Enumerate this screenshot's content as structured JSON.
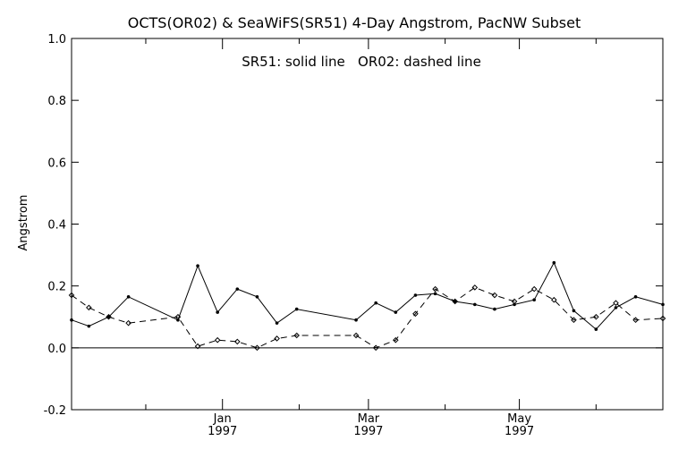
{
  "chart_data": {
    "type": "line",
    "title": "OCTS(OR02) & SeaWiFS(SR51) 4-Day Angstrom, PacNW Subset",
    "annotation": "SR51: solid line   OR02: dashed line",
    "xlabel": "",
    "ylabel": "Angstrom",
    "ylim": [
      -0.2,
      1.0
    ],
    "yticks": [
      "-0.2",
      "0.0",
      "0.2",
      "0.4",
      "0.6",
      "0.8",
      "1.0"
    ],
    "xlim": [
      "1996-11-01",
      "1997-06-28"
    ],
    "xticks": [
      {
        "date": "1997-01-01",
        "label": "Jan",
        "sublabel": "1997"
      },
      {
        "date": "1997-03-01",
        "label": "Mar",
        "sublabel": "1997"
      },
      {
        "date": "1997-05-01",
        "label": "May",
        "sublabel": "1997"
      }
    ],
    "minor_ticks": [
      "1996-12-01",
      "1997-02-01",
      "1997-04-01",
      "1997-06-01"
    ],
    "zero_line": true,
    "grid": false,
    "series": [
      {
        "name": "SR51",
        "style": "solid",
        "x": [
          "1996-11-01",
          "1996-11-08",
          "1996-11-16",
          "1996-11-24",
          "1996-12-14",
          "1996-12-22",
          "1996-12-30",
          "1997-01-07",
          "1997-01-15",
          "1997-01-23",
          "1997-01-31",
          "1997-02-24",
          "1997-03-04",
          "1997-03-12",
          "1997-03-20",
          "1997-03-28",
          "1997-04-05",
          "1997-04-13",
          "1997-04-21",
          "1997-04-29",
          "1997-05-07",
          "1997-05-15",
          "1997-05-23",
          "1997-06-01",
          "1997-06-09",
          "1997-06-17",
          "1997-06-28"
        ],
        "values": [
          0.09,
          0.07,
          0.1,
          0.165,
          0.09,
          0.265,
          0.115,
          0.19,
          0.165,
          0.08,
          0.125,
          0.09,
          0.145,
          0.115,
          0.17,
          0.175,
          0.15,
          0.14,
          0.125,
          0.14,
          0.155,
          0.275,
          0.12,
          0.06,
          0.13,
          0.165,
          0.14
        ]
      },
      {
        "name": "OR02",
        "style": "dashed",
        "x": [
          "1996-11-01",
          "1996-11-08",
          "1996-11-16",
          "1996-11-24",
          "1996-12-14",
          "1996-12-22",
          "1996-12-30",
          "1997-01-07",
          "1997-01-15",
          "1997-01-23",
          "1997-01-31",
          "1997-02-24",
          "1997-03-04",
          "1997-03-12",
          "1997-03-20",
          "1997-03-28",
          "1997-04-05",
          "1997-04-13",
          "1997-04-21",
          "1997-04-29",
          "1997-05-07",
          "1997-05-15",
          "1997-05-23",
          "1997-06-01",
          "1997-06-09",
          "1997-06-17",
          "1997-06-28"
        ],
        "values": [
          0.17,
          0.13,
          0.1,
          0.08,
          0.1,
          0.005,
          0.025,
          0.02,
          0.0,
          0.03,
          0.04,
          0.04,
          0.0,
          0.025,
          0.11,
          0.19,
          0.15,
          0.195,
          0.17,
          0.15,
          0.19,
          0.155,
          0.09,
          0.1,
          0.145,
          0.09,
          0.095
        ]
      }
    ]
  }
}
